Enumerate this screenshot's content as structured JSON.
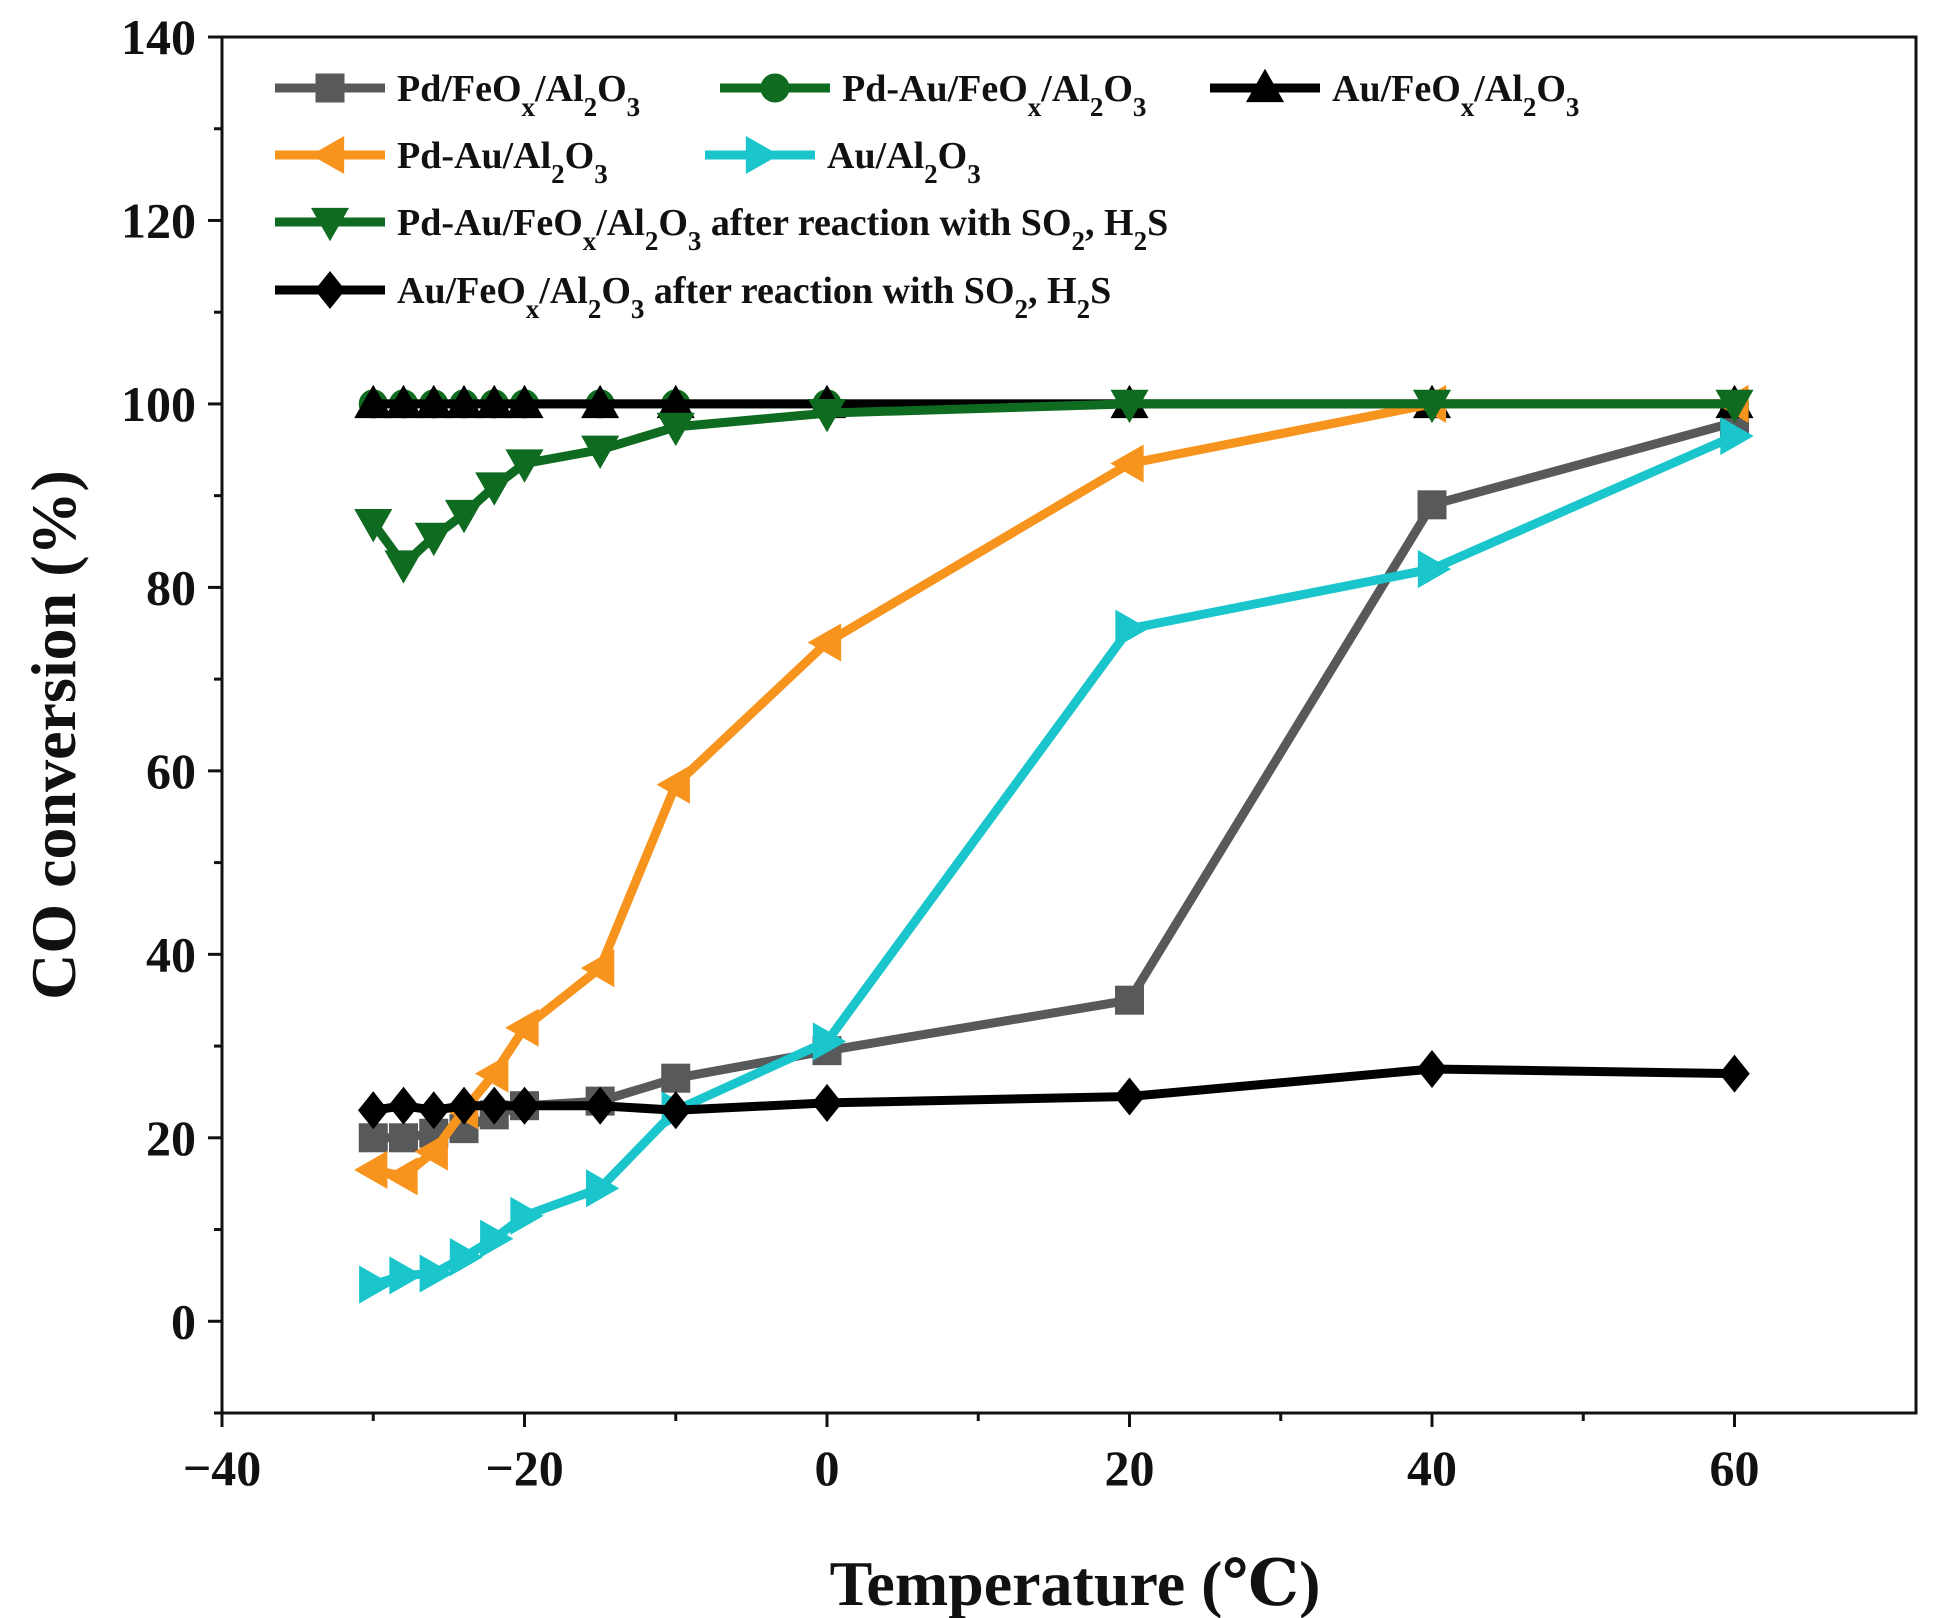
{
  "chart_data": {
    "type": "line",
    "title": "",
    "xlabel": "Temperature (℃)",
    "ylabel": "CO conversion (%)",
    "xlim": [
      -40,
      72
    ],
    "ylim": [
      -10,
      140
    ],
    "xticks": [
      -40,
      -20,
      0,
      20,
      40,
      60
    ],
    "xtick_labels": [
      "−40",
      "−20",
      "0",
      "20",
      "40",
      "60"
    ],
    "yticks": [
      0,
      20,
      40,
      60,
      80,
      100,
      120,
      140
    ],
    "ytick_labels": [
      "0",
      "20",
      "40",
      "60",
      "80",
      "100",
      "120",
      "140"
    ],
    "legend_position": "top-left",
    "series": [
      {
        "name": "Pd/FeOx/Al2O3",
        "legend_parts": [
          [
            "Pd/FeO",
            ""
          ],
          [
            "x",
            "sub"
          ],
          [
            "/Al",
            ""
          ],
          [
            "2",
            "sub"
          ],
          [
            "O",
            ""
          ],
          [
            "3",
            "sub"
          ]
        ],
        "color": "#58595b",
        "marker": "square",
        "x": [
          -30,
          -28,
          -26,
          -24,
          -22,
          -20,
          -15,
          -10,
          0,
          20,
          40,
          60
        ],
        "y": [
          20,
          20,
          20.5,
          21,
          22.5,
          23.5,
          24,
          26.5,
          29.5,
          35,
          89,
          98
        ]
      },
      {
        "name": "Pd-Au/FeOx/Al2O3",
        "legend_parts": [
          [
            "Pd-Au/FeO",
            ""
          ],
          [
            "x",
            "sub"
          ],
          [
            "/Al",
            ""
          ],
          [
            "2",
            "sub"
          ],
          [
            "O",
            ""
          ],
          [
            "3",
            "sub"
          ]
        ],
        "color": "#0f6b20",
        "marker": "circle",
        "x": [
          -30,
          -28,
          -26,
          -24,
          -22,
          -20,
          -15,
          -10,
          0,
          20,
          40,
          60
        ],
        "y": [
          100,
          100,
          100,
          100,
          100,
          100,
          100,
          100,
          100,
          100,
          100,
          100
        ]
      },
      {
        "name": "Au/FeOx/Al2O3",
        "legend_parts": [
          [
            "Au/FeO",
            ""
          ],
          [
            "x",
            "sub"
          ],
          [
            "/Al",
            ""
          ],
          [
            "2",
            "sub"
          ],
          [
            "O",
            ""
          ],
          [
            "3",
            "sub"
          ]
        ],
        "color": "#000000",
        "marker": "triangle-up",
        "x": [
          -30,
          -28,
          -26,
          -24,
          -22,
          -20,
          -15,
          -10,
          0,
          20,
          40,
          60
        ],
        "y": [
          100,
          100,
          100,
          100,
          100,
          100,
          100,
          100,
          100,
          100,
          100,
          100
        ]
      },
      {
        "name": "Pd-Au/Al2O3",
        "legend_parts": [
          [
            "Pd-Au/Al",
            ""
          ],
          [
            "2",
            "sub"
          ],
          [
            "O",
            ""
          ],
          [
            "3",
            "sub"
          ]
        ],
        "color": "#f7941d",
        "marker": "triangle-left",
        "x": [
          -30,
          -28,
          -26,
          -24,
          -22,
          -20,
          -15,
          -10,
          0,
          20,
          40,
          60
        ],
        "y": [
          16.5,
          15.8,
          18.5,
          23,
          27,
          32,
          38.5,
          58.5,
          74,
          93.5,
          100,
          100
        ]
      },
      {
        "name": "Au/Al2O3",
        "legend_parts": [
          [
            "Au/Al",
            ""
          ],
          [
            "2",
            "sub"
          ],
          [
            "O",
            ""
          ],
          [
            "3",
            "sub"
          ]
        ],
        "color": "#1ac6cc",
        "marker": "triangle-right",
        "x": [
          -30,
          -28,
          -26,
          -24,
          -22,
          -20,
          -15,
          -10,
          0,
          20,
          40,
          60
        ],
        "y": [
          4,
          5,
          5.2,
          7,
          9,
          11.5,
          14.5,
          23,
          30.5,
          75.5,
          82,
          96.5
        ]
      },
      {
        "name": "Pd-Au/FeOx/Al2O3 after reaction with SO2, H2S",
        "legend_parts": [
          [
            "Pd-Au/FeO",
            ""
          ],
          [
            "x",
            "sub"
          ],
          [
            "/Al",
            ""
          ],
          [
            "2",
            "sub"
          ],
          [
            "O",
            ""
          ],
          [
            "3",
            "sub"
          ],
          [
            " after reaction with SO",
            ""
          ],
          [
            "2",
            "sub"
          ],
          [
            ", H",
            ""
          ],
          [
            "2",
            "sub"
          ],
          [
            "S",
            ""
          ]
        ],
        "color": "#0f6b20",
        "marker": "triangle-down",
        "x": [
          -30,
          -28,
          -26,
          -24,
          -22,
          -20,
          -15,
          -10,
          0,
          20,
          40,
          60
        ],
        "y": [
          87,
          82.5,
          85.5,
          88,
          91,
          93.5,
          95,
          97.5,
          99,
          100,
          100,
          100
        ]
      },
      {
        "name": "Au/FeOx/Al2O3 after reaction with SO2, H2S",
        "legend_parts": [
          [
            "Au/FeO",
            ""
          ],
          [
            "x",
            "sub"
          ],
          [
            "/Al",
            ""
          ],
          [
            "2",
            "sub"
          ],
          [
            "O",
            ""
          ],
          [
            "3",
            "sub"
          ],
          [
            " after reaction with SO",
            ""
          ],
          [
            "2",
            "sub"
          ],
          [
            ", H",
            ""
          ],
          [
            "2",
            "sub"
          ],
          [
            "S",
            ""
          ]
        ],
        "color": "#000000",
        "marker": "diamond",
        "x": [
          -30,
          -28,
          -26,
          -24,
          -22,
          -20,
          -15,
          -10,
          0,
          20,
          40,
          60
        ],
        "y": [
          23,
          23.5,
          23,
          23.5,
          23.5,
          23.5,
          23.5,
          23,
          23.8,
          24.5,
          27.5,
          27
        ]
      }
    ]
  }
}
